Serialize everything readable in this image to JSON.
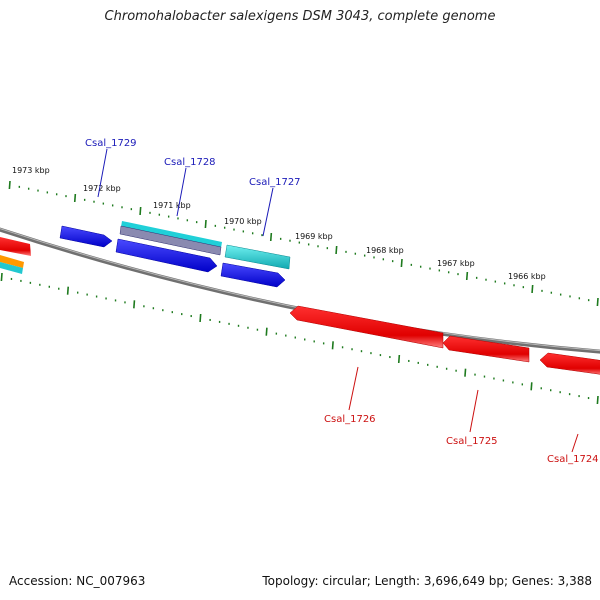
{
  "title": "Chromohalobacter salexigens DSM 3043, complete genome",
  "accession_label": "Accession: NC_007963",
  "topology_label": "Topology: circular; Length: 3,696,649 bp; Genes: 3,388",
  "kbp_labels": [
    "1973 kbp",
    "1972 kbp",
    "1971 kbp",
    "1970 kbp",
    "1969 kbp",
    "1968 kbp",
    "1967 kbp",
    "1966 kbp"
  ],
  "genes_top": [
    {
      "id": "Csal_1729",
      "color": "#1a1ab8"
    },
    {
      "id": "Csal_1728",
      "color": "#1a1ab8"
    },
    {
      "id": "Csal_1727",
      "color": "#1a1ab8"
    }
  ],
  "genes_bottom": [
    {
      "id": "Csal_1726",
      "color": "#cc1111"
    },
    {
      "id": "Csal_1725",
      "color": "#cc1111"
    },
    {
      "id": "Csal_1724",
      "color": "#cc1111"
    }
  ],
  "colors": {
    "backbone": "#808080",
    "tick": "#1e7a1e",
    "forward_gene": "#1010e0",
    "reverse_gene": "#ee1111",
    "cyan_gene": "#22c8d0",
    "orange_gene": "#ff9900"
  }
}
